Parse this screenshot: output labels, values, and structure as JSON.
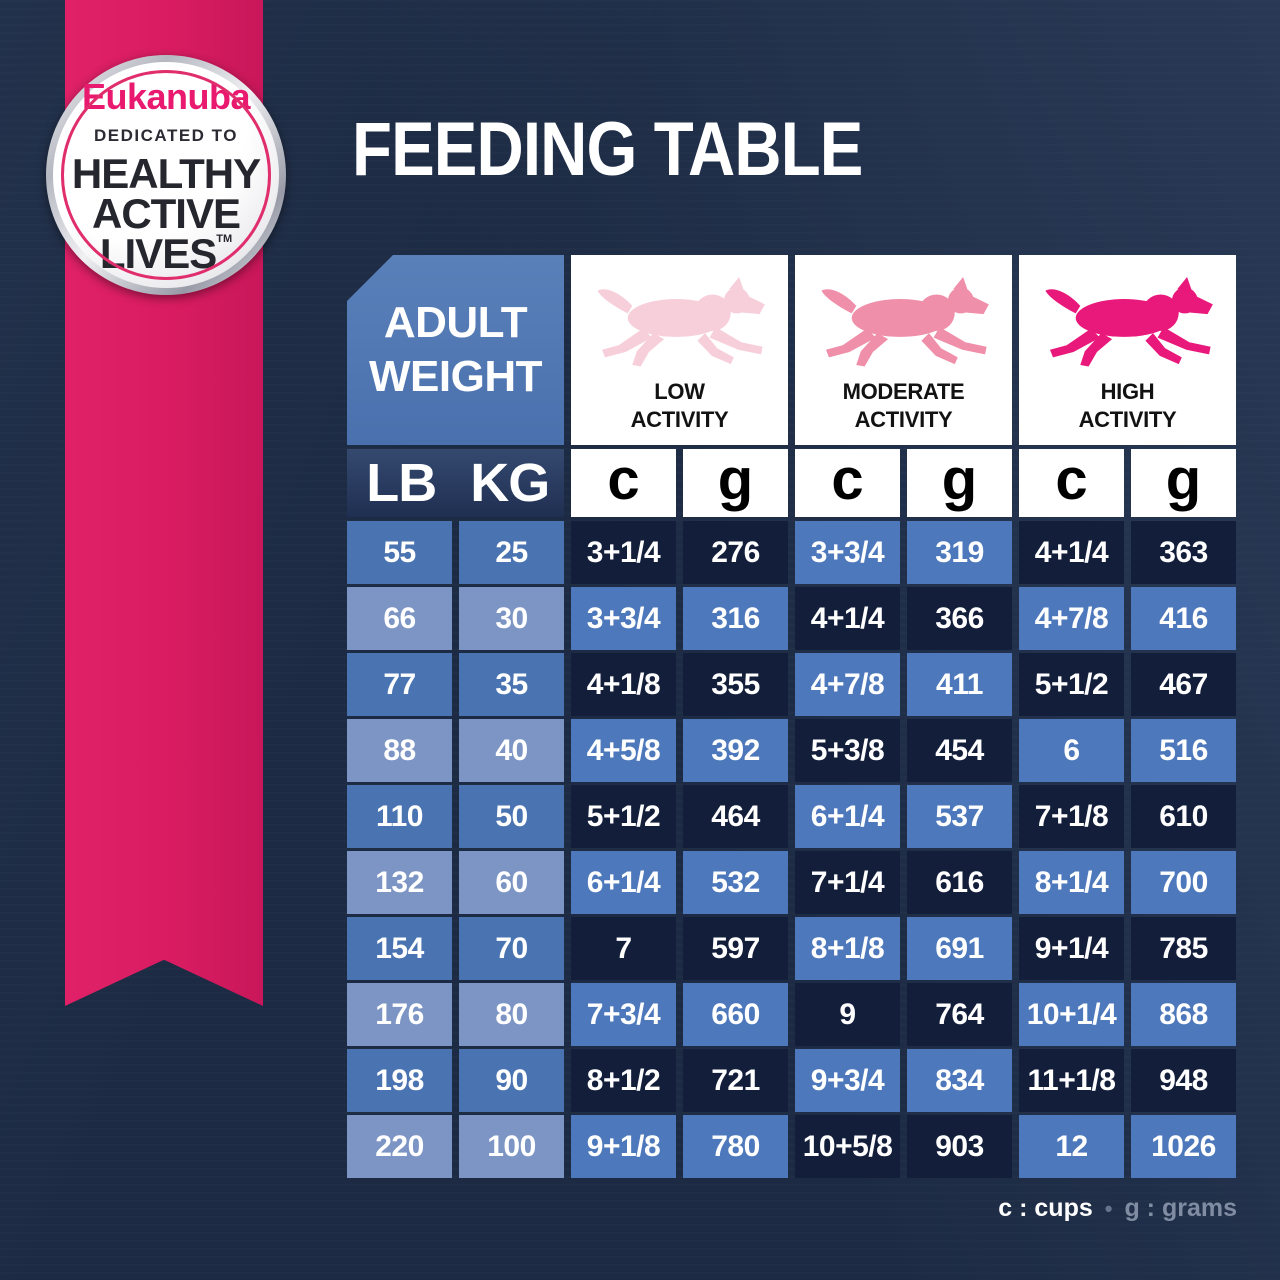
{
  "badge": {
    "brand": "Eukanuba",
    "dedicated": "DEDICATED TO",
    "line1": "HEALTHY",
    "line2": "ACTIVE",
    "line3": "LIVES",
    "trademark": "TM"
  },
  "title": "FEEDING TABLE",
  "table": {
    "adult_weight_line1": "ADULT",
    "adult_weight_line2": "WEIGHT",
    "activities": [
      {
        "name": "LOW ACTIVITY",
        "line1": "LOW",
        "line2": "ACTIVITY",
        "dog_color": "#f7cfdb"
      },
      {
        "name": "MODERATE ACTIVITY",
        "line1": "MODERATE",
        "line2": "ACTIVITY",
        "dog_color": "#ef8fa9"
      },
      {
        "name": "HIGH ACTIVITY",
        "line1": "HIGH",
        "line2": "ACTIVITY",
        "dog_color": "#e9187b"
      }
    ],
    "weight_headers": [
      "LB",
      "KG"
    ],
    "unit_headers": [
      "c",
      "g",
      "c",
      "g",
      "c",
      "g"
    ]
  },
  "chart_data": {
    "type": "table",
    "title": "FEEDING TABLE",
    "columns": [
      "LB",
      "KG",
      "Low Activity c",
      "Low Activity g",
      "Moderate Activity c",
      "Moderate Activity g",
      "High Activity c",
      "High Activity g"
    ],
    "rows": [
      [
        "55",
        "25",
        "3+1/4",
        "276",
        "3+3/4",
        "319",
        "4+1/4",
        "363"
      ],
      [
        "66",
        "30",
        "3+3/4",
        "316",
        "4+1/4",
        "366",
        "4+7/8",
        "416"
      ],
      [
        "77",
        "35",
        "4+1/8",
        "355",
        "4+7/8",
        "411",
        "5+1/2",
        "467"
      ],
      [
        "88",
        "40",
        "4+5/8",
        "392",
        "5+3/8",
        "454",
        "6",
        "516"
      ],
      [
        "110",
        "50",
        "5+1/2",
        "464",
        "6+1/4",
        "537",
        "7+1/8",
        "610"
      ],
      [
        "132",
        "60",
        "6+1/4",
        "532",
        "7+1/4",
        "616",
        "8+1/4",
        "700"
      ],
      [
        "154",
        "70",
        "7",
        "597",
        "8+1/8",
        "691",
        "9+1/4",
        "785"
      ],
      [
        "176",
        "80",
        "7+3/4",
        "660",
        "9",
        "764",
        "10+1/4",
        "868"
      ],
      [
        "198",
        "90",
        "8+1/2",
        "721",
        "9+3/4",
        "834",
        "11+1/8",
        "948"
      ],
      [
        "220",
        "100",
        "9+1/8",
        "780",
        "10+5/8",
        "903",
        "12",
        "1026"
      ]
    ],
    "units_note": "c : cups, g : grams"
  },
  "legend": {
    "cups": "c : cups",
    "separator": "•",
    "grams": "g : grams"
  },
  "colors": {
    "background_navy": "#1c2a43",
    "ribbon_pink": "#d91c61",
    "cell_dark": "#131e3a",
    "cell_blue": "#4d79bc",
    "weight_medium": "#4a73b1",
    "weight_light": "#7d95c4",
    "brand_pink": "#e8196f"
  }
}
